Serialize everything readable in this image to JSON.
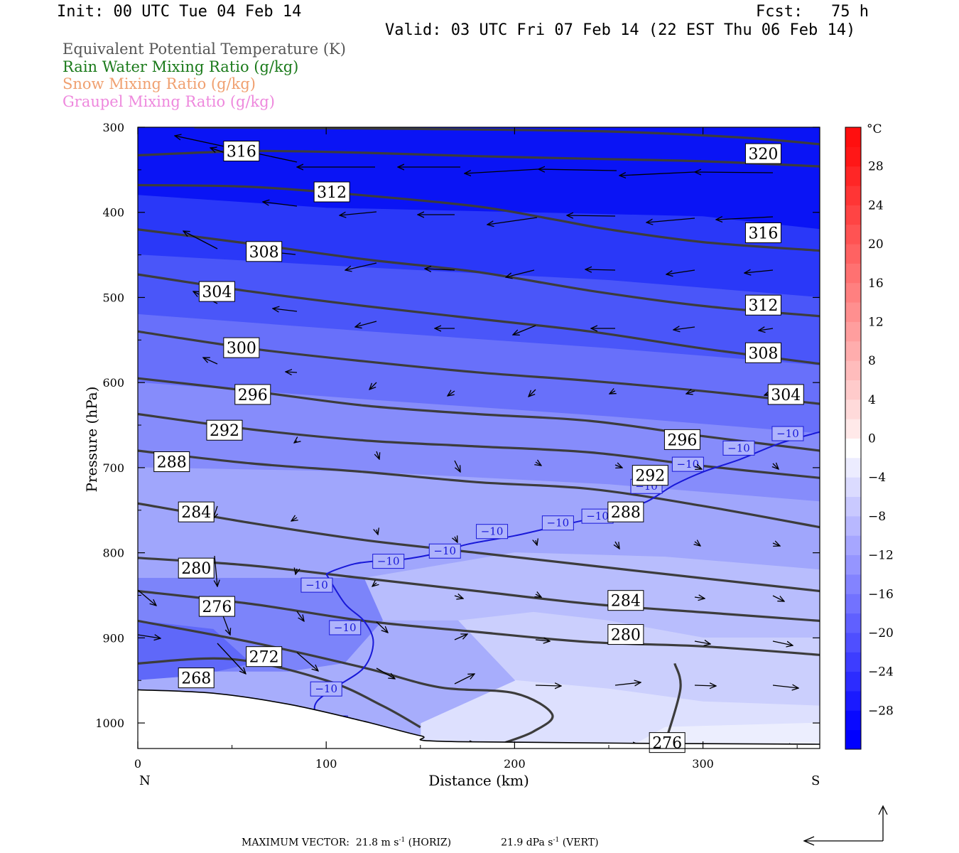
{
  "header": {
    "init": "Init: 00 UTC Tue 04 Feb 14",
    "fcst": "Fcst:   75 h",
    "valid": "Valid: 03 UTC Fri 07 Feb 14 (22 EST Thu 06 Feb 14)"
  },
  "legend": [
    {
      "label": "Equivalent Potential Temperature (K)",
      "color": "#555555"
    },
    {
      "label": "Rain Water Mixing Ratio (g/kg)",
      "color": "#1a7a1a"
    },
    {
      "label": "Snow Mixing Ratio (g/kg)",
      "color": "#f0a070"
    },
    {
      "label": "Graupel Mixing Ratio (g/kg)",
      "color": "#ee88dd"
    }
  ],
  "footer": {
    "max_vector_label": "MAXIMUM VECTOR:",
    "horiz": "21.8 m s",
    "horiz_unit": "(HORIZ)",
    "vert": "21.9 dPa s",
    "vert_unit": "(VERT)",
    "exponent": "-1"
  },
  "chart_data": {
    "type": "cross-section contour",
    "xlabel": "Distance (km)",
    "ylabel": "Pressure (hPa)",
    "xlim": [
      0,
      362
    ],
    "ylim": [
      300,
      1030
    ],
    "x_ticks": [
      0,
      100,
      200,
      300
    ],
    "y_ticks": [
      300,
      400,
      500,
      600,
      700,
      800,
      900,
      1000
    ],
    "x_end_labels": {
      "left": "N",
      "right": "S"
    },
    "colorbar": {
      "unit": "°C",
      "ticks": [
        28,
        24,
        20,
        16,
        12,
        8,
        4,
        0,
        -4,
        -8,
        -12,
        -16,
        -20,
        -24,
        -28
      ],
      "range": [
        -32,
        32
      ]
    },
    "theta_e_contours": [
      {
        "value": 316,
        "points": [
          [
            0,
            333
          ],
          [
            60,
            328
          ],
          [
            120,
            330
          ],
          [
            180,
            334
          ],
          [
            240,
            337
          ],
          [
            300,
            340
          ],
          [
            362,
            346
          ]
        ]
      },
      {
        "value": 320,
        "points": [
          [
            30,
            300
          ],
          [
            150,
            302
          ],
          [
            250,
            305
          ],
          [
            320,
            312
          ],
          [
            362,
            320
          ]
        ]
      },
      {
        "value": 312,
        "points": [
          [
            0,
            368
          ],
          [
            60,
            370
          ],
          [
            120,
            380
          ],
          [
            180,
            393
          ],
          [
            220,
            408
          ],
          [
            250,
            420
          ],
          [
            300,
            435
          ],
          [
            362,
            445
          ]
        ]
      },
      {
        "value": 308,
        "points": [
          [
            0,
            420
          ],
          [
            60,
            437
          ],
          [
            120,
            455
          ],
          [
            180,
            470
          ],
          [
            240,
            492
          ],
          [
            300,
            510
          ],
          [
            362,
            522
          ]
        ]
      },
      {
        "value": 304,
        "points": [
          [
            0,
            473
          ],
          [
            60,
            493
          ],
          [
            120,
            510
          ],
          [
            180,
            525
          ],
          [
            240,
            540
          ],
          [
            300,
            560
          ],
          [
            362,
            578
          ]
        ]
      },
      {
        "value": 300,
        "points": [
          [
            0,
            540
          ],
          [
            60,
            560
          ],
          [
            120,
            575
          ],
          [
            180,
            588
          ],
          [
            240,
            598
          ],
          [
            300,
            610
          ],
          [
            362,
            625
          ]
        ]
      },
      {
        "value": 296,
        "points": [
          [
            0,
            595
          ],
          [
            60,
            610
          ],
          [
            120,
            627
          ],
          [
            180,
            637
          ],
          [
            240,
            645
          ],
          [
            300,
            663
          ],
          [
            362,
            680
          ]
        ]
      },
      {
        "value": 292,
        "points": [
          [
            0,
            637
          ],
          [
            60,
            655
          ],
          [
            120,
            668
          ],
          [
            180,
            675
          ],
          [
            240,
            682
          ],
          [
            300,
            698
          ],
          [
            362,
            712
          ]
        ]
      },
      {
        "value": 288,
        "points": [
          [
            0,
            680
          ],
          [
            60,
            695
          ],
          [
            120,
            705
          ],
          [
            180,
            717
          ],
          [
            240,
            725
          ],
          [
            300,
            745
          ],
          [
            362,
            770
          ]
        ]
      },
      {
        "value": 284,
        "points": [
          [
            0,
            742
          ],
          [
            60,
            765
          ],
          [
            120,
            785
          ],
          [
            180,
            800
          ],
          [
            240,
            815
          ],
          [
            300,
            830
          ],
          [
            362,
            845
          ]
        ]
      },
      {
        "value": 280,
        "points": [
          [
            0,
            806
          ],
          [
            60,
            815
          ],
          [
            120,
            830
          ],
          [
            180,
            845
          ],
          [
            240,
            860
          ],
          [
            300,
            870
          ],
          [
            362,
            880
          ]
        ]
      },
      {
        "value": 276,
        "points": [
          [
            0,
            845
          ],
          [
            60,
            860
          ],
          [
            120,
            880
          ],
          [
            180,
            893
          ],
          [
            240,
            905
          ],
          [
            300,
            910
          ],
          [
            362,
            920
          ]
        ]
      },
      {
        "value": 272,
        "points": [
          [
            0,
            880
          ],
          [
            60,
            905
          ],
          [
            120,
            935
          ],
          [
            160,
            958
          ],
          [
            200,
            965
          ],
          [
            220,
            990
          ],
          [
            210,
            1010
          ],
          [
            195,
            1023
          ]
        ]
      },
      {
        "value": 268,
        "points": [
          [
            0,
            930
          ],
          [
            50,
            925
          ],
          [
            100,
            950
          ],
          [
            130,
            980
          ],
          [
            150,
            1005
          ]
        ]
      },
      {
        "value": 276,
        "points": [
          [
            280,
            1023
          ],
          [
            288,
            960
          ],
          [
            285,
            930
          ]
        ]
      }
    ],
    "theta_e_labels": [
      {
        "value": 316,
        "x": 55,
        "p": 328
      },
      {
        "value": 320,
        "x": 332,
        "p": 331
      },
      {
        "value": 312,
        "x": 103,
        "p": 376
      },
      {
        "value": 316,
        "x": 332,
        "p": 424
      },
      {
        "value": 308,
        "x": 67,
        "p": 446
      },
      {
        "value": 304,
        "x": 42,
        "p": 493
      },
      {
        "value": 312,
        "x": 332,
        "p": 509
      },
      {
        "value": 300,
        "x": 55,
        "p": 559
      },
      {
        "value": 308,
        "x": 332,
        "p": 565
      },
      {
        "value": 296,
        "x": 61,
        "p": 614
      },
      {
        "value": 304,
        "x": 344,
        "p": 614
      },
      {
        "value": 292,
        "x": 46,
        "p": 656
      },
      {
        "value": 296,
        "x": 289,
        "p": 667
      },
      {
        "value": 288,
        "x": 18,
        "p": 693
      },
      {
        "value": 292,
        "x": 272,
        "p": 709
      },
      {
        "value": 284,
        "x": 31,
        "p": 752
      },
      {
        "value": 288,
        "x": 259,
        "p": 752
      },
      {
        "value": 280,
        "x": 31,
        "p": 818
      },
      {
        "value": 284,
        "x": 259,
        "p": 856
      },
      {
        "value": 276,
        "x": 42,
        "p": 863
      },
      {
        "value": 280,
        "x": 259,
        "p": 896
      },
      {
        "value": 272,
        "x": 67,
        "p": 922
      },
      {
        "value": 268,
        "x": 31,
        "p": 947
      },
      {
        "value": 276,
        "x": 281,
        "p": 1023
      }
    ],
    "isotherm_minus10": {
      "value": -10,
      "points": [
        [
          100,
          825
        ],
        [
          105,
          820
        ],
        [
          115,
          813
        ],
        [
          125,
          810
        ],
        [
          140,
          808
        ],
        [
          160,
          800
        ],
        [
          175,
          790
        ],
        [
          200,
          780
        ],
        [
          220,
          770
        ],
        [
          240,
          760
        ],
        [
          255,
          750
        ],
        [
          270,
          740
        ],
        [
          285,
          720
        ],
        [
          300,
          705
        ],
        [
          320,
          690
        ],
        [
          340,
          672
        ],
        [
          362,
          658
        ]
      ],
      "branch": [
        [
          100,
          825
        ],
        [
          110,
          860
        ],
        [
          120,
          880
        ],
        [
          125,
          905
        ],
        [
          120,
          935
        ],
        [
          105,
          958
        ],
        [
          95,
          975
        ],
        [
          95,
          990
        ],
        [
          105,
          1005
        ],
        [
          120,
          1012
        ]
      ],
      "labels": [
        [
          95,
          838
        ],
        [
          133,
          810
        ],
        [
          163,
          798
        ],
        [
          188,
          775
        ],
        [
          223,
          765
        ],
        [
          244,
          757
        ],
        [
          270,
          722
        ],
        [
          292,
          696
        ],
        [
          319,
          677
        ],
        [
          345,
          660
        ],
        [
          385,
          662
        ],
        [
          110,
          888
        ],
        [
          100,
          960
        ],
        [
          103,
          1000
        ],
        [
          108,
          1022
        ]
      ]
    }
  }
}
